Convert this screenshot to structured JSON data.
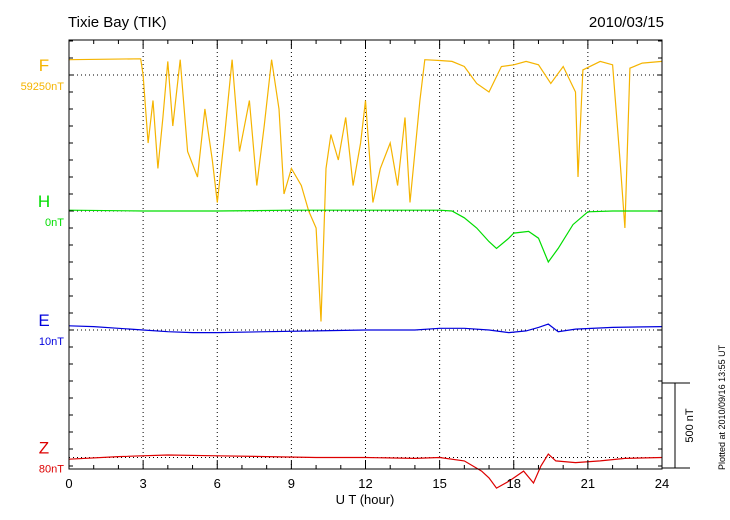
{
  "header": {
    "station": "Tixie Bay (TIK)",
    "date": "2010/03/15"
  },
  "footer": {
    "plotted_note": "Plotted at 2010/09/16 13:55 UT"
  },
  "chart_data": {
    "type": "line",
    "xlabel": "U T (hour)",
    "xlim": [
      0,
      24
    ],
    "x_ticks": [
      "0",
      "3",
      "6",
      "9",
      "12",
      "15",
      "18",
      "21",
      "24"
    ],
    "grid": true,
    "scale_bar": {
      "label": "500 nT",
      "value_nT": 500
    },
    "series": [
      {
        "name": "F",
        "baseline_label": "59250nT",
        "color": "#f5b400",
        "offset_nT": 800,
        "points": [
          [
            0,
            90
          ],
          [
            2.9,
            95
          ],
          [
            3.0,
            0
          ],
          [
            3.2,
            -400
          ],
          [
            3.4,
            -150
          ],
          [
            3.6,
            -550
          ],
          [
            3.8,
            -250
          ],
          [
            4.0,
            80
          ],
          [
            4.2,
            -300
          ],
          [
            4.5,
            90
          ],
          [
            4.8,
            -450
          ],
          [
            5.2,
            -600
          ],
          [
            5.5,
            -200
          ],
          [
            5.8,
            -500
          ],
          [
            6.0,
            -750
          ],
          [
            6.3,
            -350
          ],
          [
            6.6,
            90
          ],
          [
            6.9,
            -450
          ],
          [
            7.3,
            -150
          ],
          [
            7.6,
            -650
          ],
          [
            7.9,
            -300
          ],
          [
            8.2,
            90
          ],
          [
            8.5,
            -200
          ],
          [
            8.7,
            -700
          ],
          [
            9.0,
            -550
          ],
          [
            9.4,
            -650
          ],
          [
            9.7,
            -800
          ],
          [
            10.0,
            -900
          ],
          [
            10.2,
            -1450
          ],
          [
            10.4,
            -550
          ],
          [
            10.6,
            -350
          ],
          [
            10.9,
            -500
          ],
          [
            11.2,
            -250
          ],
          [
            11.5,
            -650
          ],
          [
            11.8,
            -400
          ],
          [
            12.0,
            -150
          ],
          [
            12.3,
            -750
          ],
          [
            12.6,
            -550
          ],
          [
            13.0,
            -400
          ],
          [
            13.3,
            -650
          ],
          [
            13.6,
            -250
          ],
          [
            13.8,
            -750
          ],
          [
            14.2,
            -150
          ],
          [
            14.4,
            90
          ],
          [
            15.0,
            85
          ],
          [
            15.5,
            80
          ],
          [
            16.0,
            50
          ],
          [
            16.5,
            -50
          ],
          [
            17.0,
            -100
          ],
          [
            17.5,
            50
          ],
          [
            18.0,
            60
          ],
          [
            18.5,
            80
          ],
          [
            19.0,
            60
          ],
          [
            19.5,
            -50
          ],
          [
            20.0,
            50
          ],
          [
            20.5,
            -100
          ],
          [
            20.6,
            -600
          ],
          [
            20.8,
            30
          ],
          [
            21.5,
            80
          ],
          [
            22.0,
            60
          ],
          [
            22.3,
            -500
          ],
          [
            22.5,
            -900
          ],
          [
            22.7,
            40
          ],
          [
            23.2,
            70
          ],
          [
            24,
            80
          ]
        ]
      },
      {
        "name": "H",
        "baseline_label": "0nT",
        "color": "#00dd00",
        "offset_nT": 0,
        "points": [
          [
            0,
            5
          ],
          [
            3,
            0
          ],
          [
            6,
            0
          ],
          [
            9,
            5
          ],
          [
            12,
            5
          ],
          [
            15,
            5
          ],
          [
            15.5,
            0
          ],
          [
            16,
            -40
          ],
          [
            16.5,
            -100
          ],
          [
            17.0,
            -180
          ],
          [
            17.3,
            -220
          ],
          [
            17.8,
            -160
          ],
          [
            18.0,
            -130
          ],
          [
            18.6,
            -120
          ],
          [
            19.0,
            -160
          ],
          [
            19.4,
            -300
          ],
          [
            19.8,
            -220
          ],
          [
            20.4,
            -80
          ],
          [
            21.0,
            -5
          ],
          [
            22,
            0
          ],
          [
            24,
            0
          ]
        ]
      },
      {
        "name": "E",
        "baseline_label": "10nT",
        "color": "#0000dd",
        "offset_nT": -700,
        "points": [
          [
            0,
            25
          ],
          [
            1,
            20
          ],
          [
            2,
            10
          ],
          [
            3,
            0
          ],
          [
            4,
            -10
          ],
          [
            5,
            -15
          ],
          [
            6,
            -15
          ],
          [
            8,
            -10
          ],
          [
            10,
            -5
          ],
          [
            12,
            0
          ],
          [
            14,
            0
          ],
          [
            15,
            10
          ],
          [
            16,
            10
          ],
          [
            17,
            0
          ],
          [
            17.8,
            -15
          ],
          [
            18.5,
            -5
          ],
          [
            19.0,
            15
          ],
          [
            19.4,
            35
          ],
          [
            19.8,
            -10
          ],
          [
            20.5,
            5
          ],
          [
            22,
            15
          ],
          [
            24,
            20
          ]
        ]
      },
      {
        "name": "Z",
        "baseline_label": "80nT",
        "color": "#dd0000",
        "offset_nT": -1450,
        "points": [
          [
            0,
            -10
          ],
          [
            2,
            5
          ],
          [
            4,
            15
          ],
          [
            6,
            10
          ],
          [
            8,
            5
          ],
          [
            10,
            0
          ],
          [
            12,
            0
          ],
          [
            14,
            -5
          ],
          [
            15,
            0
          ],
          [
            16,
            -20
          ],
          [
            16.7,
            -80
          ],
          [
            17.0,
            -120
          ],
          [
            17.3,
            -180
          ],
          [
            17.8,
            -140
          ],
          [
            18.0,
            -120
          ],
          [
            18.4,
            -80
          ],
          [
            18.8,
            -150
          ],
          [
            19.1,
            -50
          ],
          [
            19.4,
            20
          ],
          [
            19.7,
            -20
          ],
          [
            20.5,
            -30
          ],
          [
            21.5,
            -20
          ],
          [
            22.5,
            -5
          ],
          [
            24,
            0
          ]
        ]
      }
    ]
  }
}
